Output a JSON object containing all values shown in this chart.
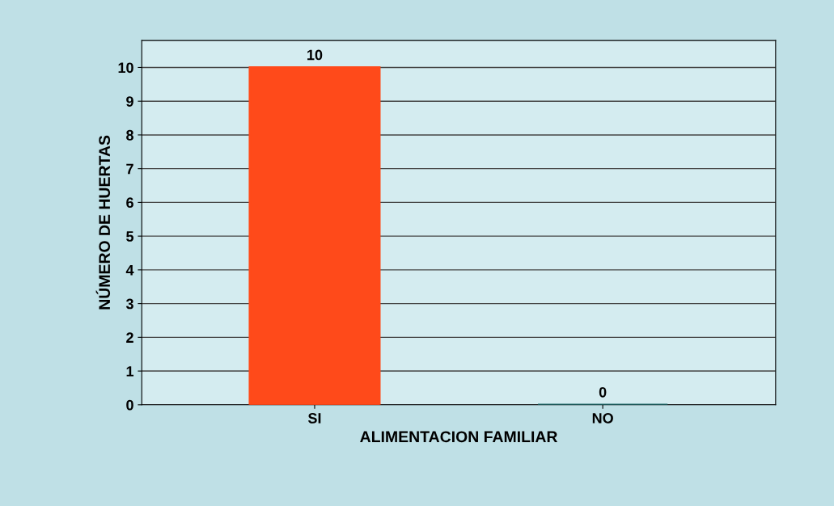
{
  "chart_data": {
    "type": "bar",
    "xlabel": "ALIMENTACION FAMILIAR",
    "ylabel": "NÚMERO DE HUERTAS",
    "categories": [
      "SI",
      "NO"
    ],
    "values": [
      10,
      0
    ],
    "colors": [
      "#ff4a1a",
      "#1a6b6b"
    ],
    "ylim": [
      0,
      10.8
    ],
    "yticks": [
      0,
      1,
      2,
      3,
      4,
      5,
      6,
      7,
      8,
      9,
      10
    ],
    "grid": "y",
    "data_labels": true
  }
}
